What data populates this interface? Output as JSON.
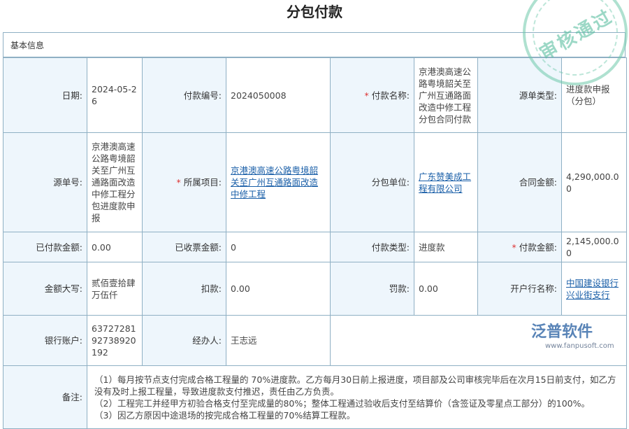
{
  "title": "分包付款",
  "section": "基本信息",
  "stamp": "审核通过",
  "logo": {
    "name": "泛普软件",
    "url": "www.fanpusoft.com"
  },
  "fields": {
    "date": {
      "label": "日期:",
      "value": "2024-05-26"
    },
    "pay_no": {
      "label": "付款编号:",
      "value": "2024050008"
    },
    "pay_name": {
      "label": "付款名称:",
      "value": "京港澳高速公路粤境韶关至广州互通路面改造中修工程分包合同付款"
    },
    "src_type": {
      "label": "源单类型:",
      "value": "进度款申报（分包）"
    },
    "src_no": {
      "label": "源单号:",
      "value": "京港澳高速公路粤境韶关至广州互通路面改造中修工程分包进度款申报"
    },
    "project": {
      "label": "所属项目:",
      "value": "京港澳高速公路粤境韶关至广州互通路面改造中修工程"
    },
    "sub_unit": {
      "label": "分包单位:",
      "value": "广东赞美成工程有限公司"
    },
    "contract_amt": {
      "label": "合同金额:",
      "value": "4,290,000.00"
    },
    "paid_amt": {
      "label": "已付款金额:",
      "value": "0.00"
    },
    "invoiced_amt": {
      "label": "已收票金额:",
      "value": "0"
    },
    "pay_type": {
      "label": "付款类型:",
      "value": "进度款"
    },
    "pay_amt": {
      "label": "付款金额:",
      "value": "2,145,000.00"
    },
    "amt_cn": {
      "label": "金额大写:",
      "value": "贰佰壹拾肆万伍仟"
    },
    "deduct": {
      "label": "扣款:",
      "value": "0.00"
    },
    "penalty": {
      "label": "罚款:",
      "value": "0.00"
    },
    "bank": {
      "label": "开户行名称:",
      "value": "中国建设银行兴业街支行"
    },
    "account": {
      "label": "银行账户:",
      "value": "6372728192738920192"
    },
    "handler": {
      "label": "经办人:",
      "value": "王志远"
    },
    "remark": {
      "label": "备注:",
      "lines": [
        "（1）每月按节点支付完成合格工程量的 70%进度款。乙方每月30日前上报进度，项目部及公司审核完毕后在次月15日前支付，如乙方没有及时上报工程量，导致进度款支付推迟，责任由乙方负责。",
        "（2）工程完工并经甲方初验合格支付至完成量的80%；整体工程通过验收后支付至结算价（含签证及零星点工部分）的100%。",
        "（3）因乙方原因中途退场的按完成合格工程量的70%结算工程款。"
      ]
    }
  }
}
